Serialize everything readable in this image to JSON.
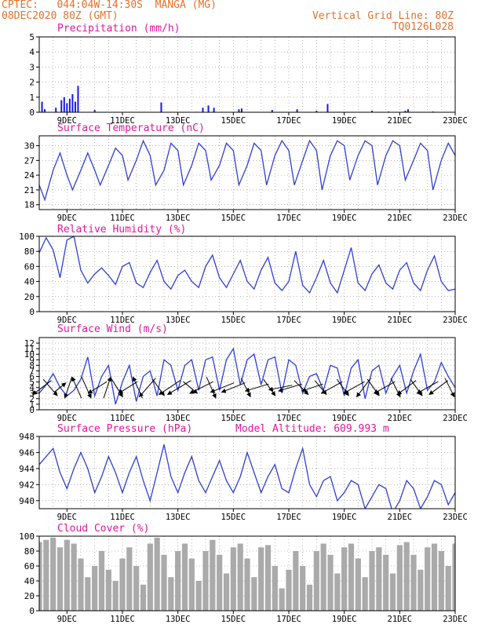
{
  "header": {
    "line1": "CPTEC:   044:04W-14:30S  MANGA (MG)",
    "line2": "08DEC2020 80Z (GMT)",
    "grid_note": "Vertical Grid Line: 80Z",
    "code": "TQ0126L028"
  },
  "colors": {
    "header": "#e8702a",
    "title": "#e0189a",
    "line": "#2f3fd6",
    "bar": "#1818e8",
    "cloud": "#aaaaaa"
  },
  "x_labels": [
    "9DEC",
    "11DEC",
    "13DEC",
    "15DEC",
    "17DEC",
    "19DEC",
    "21DEC",
    "23DEC"
  ],
  "chart_data": [
    {
      "type": "bar",
      "title": "Precipitation (mm/h)",
      "ylim": [
        0,
        5
      ],
      "yticks": [
        0,
        1,
        2,
        3,
        4,
        5
      ],
      "x": [
        8.1,
        8.2,
        8.6,
        8.8,
        8.9,
        9.0,
        9.1,
        9.2,
        9.3,
        9.4,
        10.0,
        12.4,
        13.9,
        14.1,
        14.3,
        15.2,
        15.3,
        16.4,
        17.3,
        18.0,
        18.4,
        20.0,
        20.6,
        21.2,
        21.3,
        22.2
      ],
      "values": [
        0.7,
        0.2,
        0.3,
        0.8,
        1.0,
        0.6,
        0.9,
        1.2,
        0.7,
        1.75,
        0.15,
        0.65,
        0.3,
        0.45,
        0.3,
        0.2,
        0.25,
        0.15,
        0.2,
        0.1,
        0.55,
        0.1,
        0.05,
        0.1,
        0.2,
        0.05
      ]
    },
    {
      "type": "line",
      "title": "Surface Temperature (nC)",
      "ylim": [
        17,
        32
      ],
      "yticks": [
        18,
        21,
        24,
        27,
        30
      ],
      "x": [
        8.0,
        8.2,
        8.5,
        8.75,
        9.0,
        9.2,
        9.5,
        9.75,
        10.0,
        10.2,
        10.5,
        10.75,
        11.0,
        11.2,
        11.5,
        11.75,
        12.0,
        12.2,
        12.5,
        12.75,
        13.0,
        13.2,
        13.5,
        13.75,
        14.0,
        14.2,
        14.5,
        14.75,
        15.0,
        15.2,
        15.5,
        15.75,
        16.0,
        16.2,
        16.5,
        16.75,
        17.0,
        17.2,
        17.5,
        17.75,
        18.0,
        18.2,
        18.5,
        18.75,
        19.0,
        19.2,
        19.5,
        19.75,
        20.0,
        20.2,
        20.5,
        20.75,
        21.0,
        21.2,
        21.5,
        21.75,
        22.0,
        22.2,
        22.5,
        22.75,
        23.0
      ],
      "values": [
        22,
        19,
        25,
        28.5,
        24,
        21,
        25,
        28.5,
        25,
        22,
        26,
        29.5,
        28,
        23,
        27,
        31,
        28,
        22,
        25,
        30.5,
        29,
        22,
        26,
        30.5,
        29,
        23,
        26,
        30.5,
        29,
        22,
        26,
        30.5,
        29,
        22,
        28,
        31,
        29,
        22,
        27,
        31,
        29,
        21,
        28,
        31,
        30,
        23,
        28,
        31,
        30,
        22,
        28,
        31,
        30,
        23,
        27,
        30.5,
        29,
        21,
        27,
        30.5,
        28
      ]
    },
    {
      "type": "line",
      "title": "Relative Humidity (%)",
      "ylim": [
        0,
        100
      ],
      "yticks": [
        0,
        20,
        40,
        60,
        80,
        100
      ],
      "x": [
        8.0,
        8.25,
        8.5,
        8.75,
        9.0,
        9.25,
        9.5,
        9.75,
        10.0,
        10.25,
        10.5,
        10.75,
        11.0,
        11.25,
        11.5,
        11.75,
        12.0,
        12.25,
        12.5,
        12.75,
        13.0,
        13.25,
        13.5,
        13.75,
        14.0,
        14.25,
        14.5,
        14.75,
        15.0,
        15.25,
        15.5,
        15.75,
        16.0,
        16.25,
        16.5,
        16.75,
        17.0,
        17.25,
        17.5,
        17.75,
        18.0,
        18.25,
        18.5,
        18.75,
        19.0,
        19.25,
        19.5,
        19.75,
        20.0,
        20.25,
        20.5,
        20.75,
        21.0,
        21.25,
        21.5,
        21.75,
        22.0,
        22.25,
        22.5,
        22.75,
        23.0
      ],
      "values": [
        78,
        98,
        82,
        45,
        95,
        100,
        55,
        38,
        50,
        58,
        48,
        36,
        60,
        65,
        38,
        32,
        52,
        68,
        40,
        30,
        48,
        55,
        40,
        32,
        60,
        75,
        45,
        32,
        50,
        68,
        40,
        30,
        55,
        72,
        38,
        28,
        40,
        80,
        35,
        25,
        45,
        68,
        38,
        25,
        55,
        85,
        38,
        28,
        50,
        62,
        38,
        30,
        55,
        65,
        38,
        28,
        55,
        74,
        40,
        28,
        30
      ]
    },
    {
      "type": "line",
      "title": "Surface Wind (m/s)",
      "ylim": [
        0,
        13
      ],
      "yticks": [
        0,
        1,
        2,
        3,
        4,
        5,
        6,
        7,
        8,
        9,
        10,
        11,
        12
      ],
      "x": [
        8.0,
        8.25,
        8.5,
        8.75,
        9.0,
        9.25,
        9.5,
        9.75,
        10.0,
        10.25,
        10.5,
        10.75,
        11.0,
        11.25,
        11.5,
        11.75,
        12.0,
        12.25,
        12.5,
        12.75,
        13.0,
        13.25,
        13.5,
        13.75,
        14.0,
        14.25,
        14.5,
        14.75,
        15.0,
        15.25,
        15.5,
        15.75,
        16.0,
        16.25,
        16.5,
        16.75,
        17.0,
        17.25,
        17.5,
        17.75,
        18.0,
        18.25,
        18.5,
        18.75,
        19.0,
        19.25,
        19.5,
        19.75,
        20.0,
        20.25,
        20.5,
        20.75,
        21.0,
        21.25,
        21.5,
        21.75,
        22.0,
        22.25,
        22.5,
        22.75,
        23.0
      ],
      "values": [
        3,
        4.5,
        6.5,
        4,
        2.5,
        3.5,
        5.5,
        9.5,
        2.5,
        6,
        8,
        1,
        5,
        8,
        1.5,
        6,
        7,
        2.5,
        9,
        8,
        3.5,
        8,
        9,
        3.5,
        9,
        9.5,
        3.5,
        9,
        11,
        4.5,
        9,
        10,
        4.5,
        9,
        9.5,
        3,
        9,
        8,
        3,
        6,
        6.5,
        3.5,
        8,
        7.5,
        2.5,
        7.5,
        9,
        2,
        7,
        8,
        3,
        6,
        8,
        3,
        7,
        10,
        3.5,
        5,
        8.5,
        6,
        4
      ]
    },
    {
      "type": "line",
      "title": "Surface Pressure (hPa)",
      "ylim": [
        939,
        948
      ],
      "yticks": [
        940,
        942,
        944,
        946,
        948
      ],
      "annotation": "Model Altitude: 609.993 m",
      "x": [
        8.0,
        8.25,
        8.5,
        8.75,
        9.0,
        9.25,
        9.5,
        9.75,
        10.0,
        10.25,
        10.5,
        10.75,
        11.0,
        11.25,
        11.5,
        11.75,
        12.0,
        12.25,
        12.5,
        12.75,
        13.0,
        13.25,
        13.5,
        13.75,
        14.0,
        14.25,
        14.5,
        14.75,
        15.0,
        15.25,
        15.5,
        15.75,
        16.0,
        16.25,
        16.5,
        16.75,
        17.0,
        17.25,
        17.5,
        17.75,
        18.0,
        18.25,
        18.5,
        18.75,
        19.0,
        19.25,
        19.5,
        19.75,
        20.0,
        20.25,
        20.5,
        20.75,
        21.0,
        21.25,
        21.5,
        21.75,
        22.0,
        22.25,
        22.5,
        22.75,
        23.0
      ],
      "values": [
        944.5,
        945.5,
        946.5,
        943.5,
        941.5,
        944,
        946,
        944,
        941,
        943,
        945.5,
        943.5,
        941,
        943.5,
        945.5,
        942.5,
        940,
        943.5,
        947,
        943,
        941,
        943.5,
        945.5,
        942.5,
        941,
        943,
        945,
        942.5,
        941,
        943,
        946,
        943.5,
        941,
        943,
        944.5,
        941.5,
        941,
        944,
        946.5,
        942,
        940.5,
        942.5,
        943,
        940,
        941,
        942.5,
        942,
        939,
        940.5,
        942,
        941.5,
        938.5,
        940,
        942.5,
        941.5,
        939,
        940.5,
        942.5,
        942,
        939.5,
        941
      ]
    },
    {
      "type": "bar",
      "title": "Cloud Cover (%)",
      "ylim": [
        0,
        100
      ],
      "yticks": [
        0,
        20,
        40,
        60,
        80,
        100
      ],
      "x": [
        8.0,
        8.25,
        8.5,
        8.75,
        9.0,
        9.25,
        9.5,
        9.75,
        10.0,
        10.25,
        10.5,
        10.75,
        11.0,
        11.25,
        11.5,
        11.75,
        12.0,
        12.25,
        12.5,
        12.75,
        13.0,
        13.25,
        13.5,
        13.75,
        14.0,
        14.25,
        14.5,
        14.75,
        15.0,
        15.25,
        15.5,
        15.75,
        16.0,
        16.25,
        16.5,
        16.75,
        17.0,
        17.25,
        17.5,
        17.75,
        18.0,
        18.25,
        18.5,
        18.75,
        19.0,
        19.25,
        19.5,
        19.75,
        20.0,
        20.25,
        20.5,
        20.75,
        21.0,
        21.25,
        21.5,
        21.75,
        22.0,
        22.25,
        22.5,
        22.75,
        23.0
      ],
      "values": [
        92,
        95,
        98,
        85,
        95,
        90,
        70,
        45,
        60,
        80,
        55,
        40,
        70,
        85,
        60,
        35,
        90,
        98,
        75,
        45,
        80,
        90,
        70,
        40,
        80,
        95,
        75,
        50,
        85,
        90,
        70,
        45,
        85,
        88,
        60,
        30,
        55,
        80,
        60,
        35,
        80,
        90,
        75,
        50,
        85,
        90,
        70,
        45,
        80,
        85,
        75,
        50,
        88,
        92,
        75,
        55,
        85,
        90,
        80,
        60,
        90
      ]
    }
  ],
  "wind_vectors": [
    {
      "x": 8.1,
      "u": 0.8,
      "v": 0.6
    },
    {
      "x": 8.4,
      "u": -0.6,
      "v": 0.7
    },
    {
      "x": 8.75,
      "u": -0.5,
      "v": -0.4
    },
    {
      "x": 9.05,
      "u": 0.3,
      "v": 0.9
    },
    {
      "x": 9.35,
      "u": 0.4,
      "v": -0.9
    },
    {
      "x": 9.7,
      "u": -0.4,
      "v": 0.9
    },
    {
      "x": 10.1,
      "u": 0.8,
      "v": 0.5
    },
    {
      "x": 10.45,
      "u": -0.3,
      "v": -0.9
    },
    {
      "x": 10.8,
      "u": -0.5,
      "v": 0.8
    },
    {
      "x": 11.2,
      "u": 0.8,
      "v": 0.5
    },
    {
      "x": 11.55,
      "u": 0.4,
      "v": -0.9
    },
    {
      "x": 11.9,
      "u": 0.7,
      "v": 0.8
    },
    {
      "x": 12.3,
      "u": -0.5,
      "v": 0.7
    },
    {
      "x": 12.7,
      "u": 0.9,
      "v": 0.6
    },
    {
      "x": 13.05,
      "u": 1.0,
      "v": 0.6
    },
    {
      "x": 13.45,
      "u": -0.6,
      "v": 0.5
    },
    {
      "x": 13.85,
      "u": 1.0,
      "v": 0.5
    },
    {
      "x": 14.2,
      "u": -0.4,
      "v": 0.9
    },
    {
      "x": 14.6,
      "u": 1.0,
      "v": 0.4
    },
    {
      "x": 15.0,
      "u": 1.0,
      "v": 0.4
    },
    {
      "x": 15.45,
      "u": -0.4,
      "v": 0.8
    },
    {
      "x": 15.85,
      "u": 1.0,
      "v": 0.3
    },
    {
      "x": 16.3,
      "u": -0.5,
      "v": 0.7
    },
    {
      "x": 16.7,
      "u": 1.0,
      "v": 0.2
    },
    {
      "x": 17.05,
      "u": 1.0,
      "v": 0.3
    },
    {
      "x": 17.45,
      "u": -0.6,
      "v": 0.6
    },
    {
      "x": 17.85,
      "u": 0.9,
      "v": 0.3
    },
    {
      "x": 18.15,
      "u": -0.5,
      "v": 0.6
    },
    {
      "x": 18.55,
      "u": 0.9,
      "v": 0.5
    },
    {
      "x": 18.95,
      "u": -0.5,
      "v": 0.7
    },
    {
      "x": 19.35,
      "u": 0.9,
      "v": 0.5
    },
    {
      "x": 19.7,
      "u": 0.6,
      "v": 0.8
    },
    {
      "x": 20.05,
      "u": -0.5,
      "v": 0.7
    },
    {
      "x": 20.45,
      "u": 0.9,
      "v": 0.5
    },
    {
      "x": 20.85,
      "u": -0.4,
      "v": 0.8
    },
    {
      "x": 21.25,
      "u": 0.8,
      "v": 0.6
    },
    {
      "x": 21.6,
      "u": -0.5,
      "v": 0.7
    },
    {
      "x": 22.0,
      "u": 0.9,
      "v": 0.5
    },
    {
      "x": 22.4,
      "u": 0.8,
      "v": 0.6
    },
    {
      "x": 22.8,
      "u": -0.4,
      "v": 0.8
    }
  ]
}
